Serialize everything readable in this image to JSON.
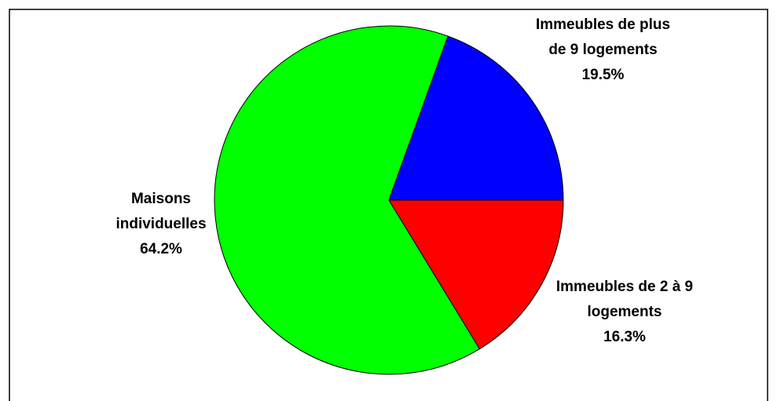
{
  "chart_data": {
    "type": "pie",
    "categories": [
      "Immeubles de 2 à 9 logements",
      "Maisons individuelles",
      "Immeubles de plus de 9 logements"
    ],
    "values": [
      16.3,
      64.2,
      19.5
    ],
    "value_labels": [
      "16.3%",
      "64.2%",
      "19.5%"
    ],
    "colors": [
      "#ff0000",
      "#00ff00",
      "#0000ff"
    ]
  }
}
